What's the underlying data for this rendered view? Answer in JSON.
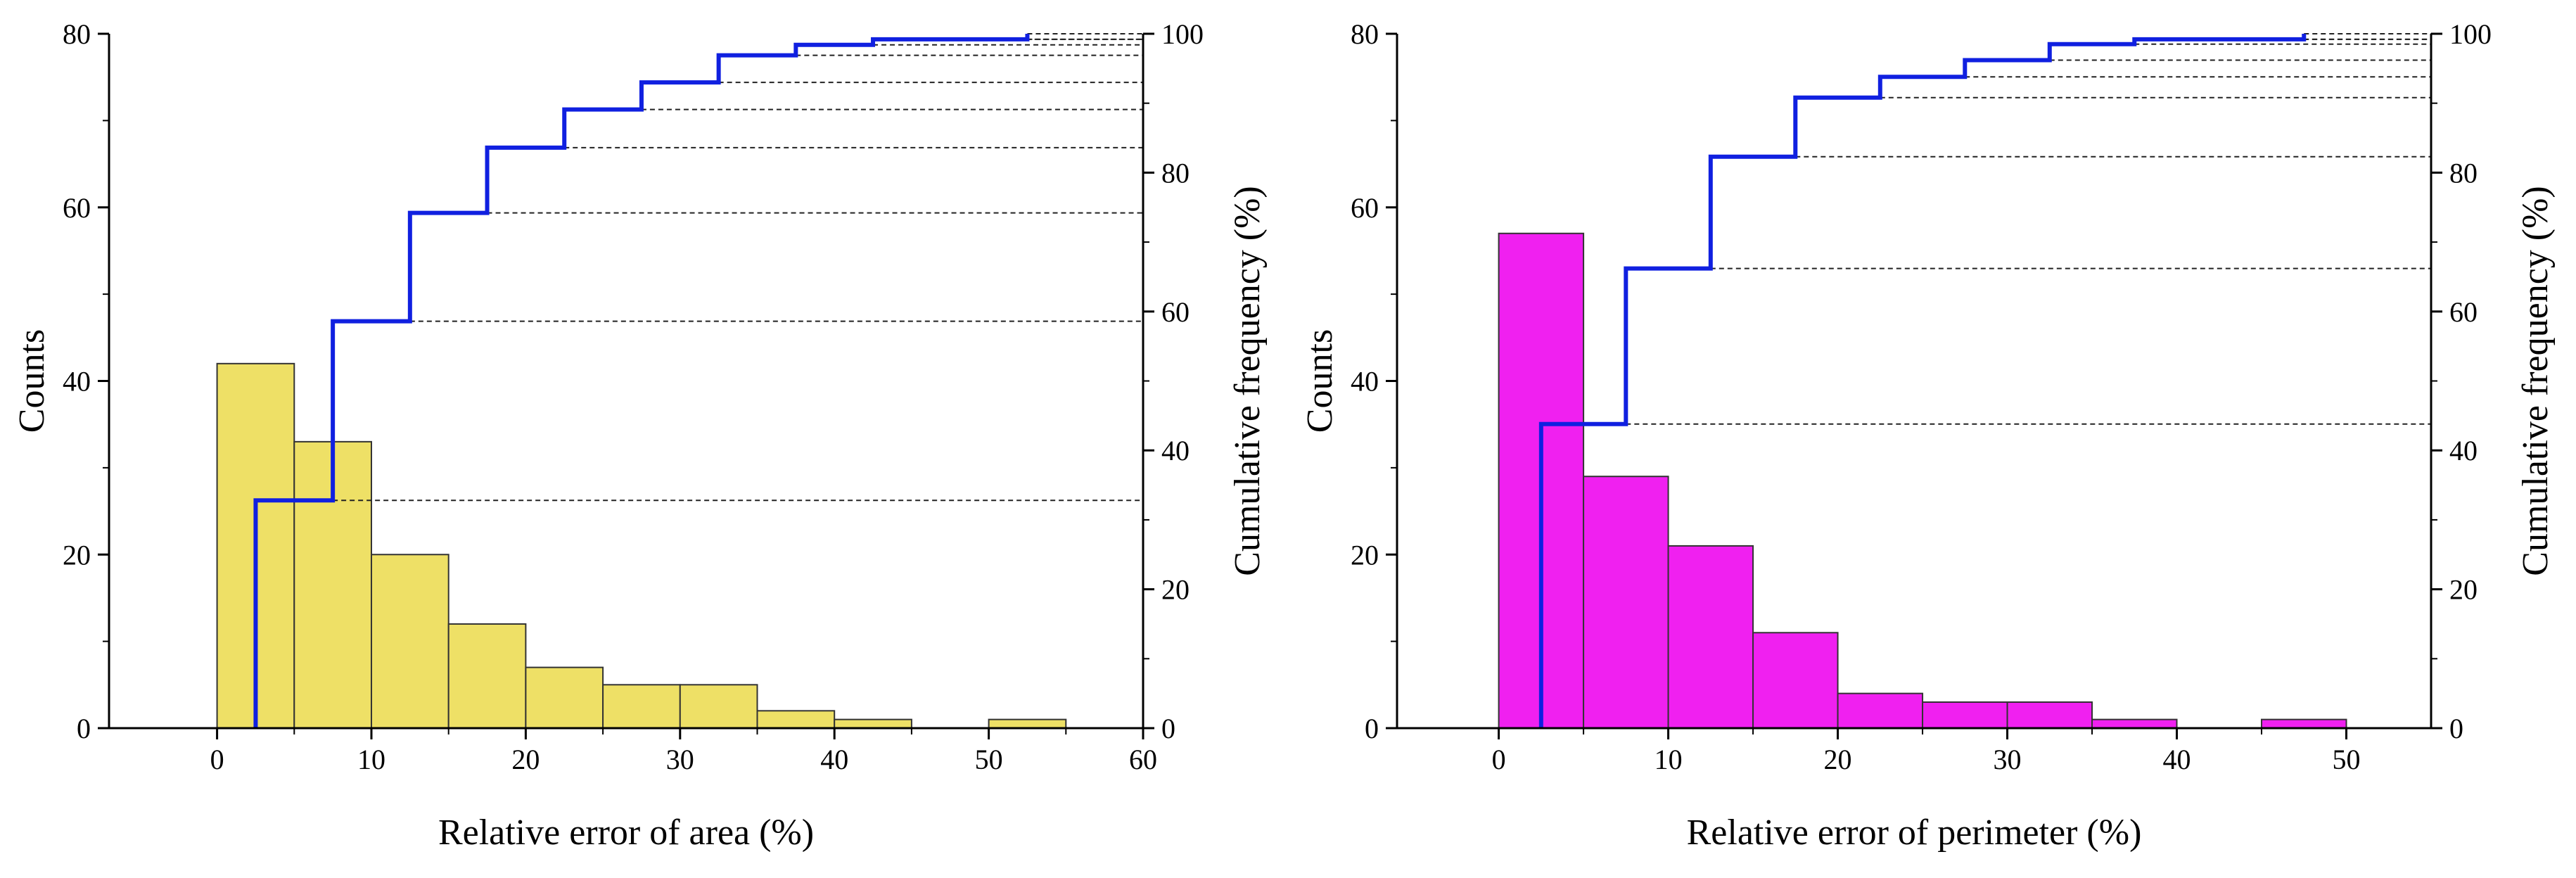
{
  "chart_data": [
    {
      "type": "bar",
      "id": "left",
      "xlabel": "Relative error of area (%)",
      "ylabel": "Counts",
      "ylabel_right": "Cumulative frequency (%)",
      "xlim": [
        -7,
        60
      ],
      "ylim": [
        0,
        80
      ],
      "ylim_right": [
        0,
        100
      ],
      "xticks": [
        0,
        10,
        20,
        30,
        40,
        50,
        60
      ],
      "yticks": [
        0,
        20,
        40,
        60,
        80
      ],
      "yticks_right": [
        0,
        20,
        40,
        60,
        80,
        100
      ],
      "bar_color": "#EEE066",
      "bin_width": 5,
      "bins": [
        0,
        5,
        10,
        15,
        20,
        25,
        30,
        35,
        40,
        45,
        50
      ],
      "counts": [
        42,
        33,
        20,
        12,
        7,
        5,
        5,
        2,
        1,
        0,
        1
      ],
      "cumulative_x": [
        2.5,
        7.5,
        12.5,
        17.5,
        22.5,
        27.5,
        32.5,
        37.5,
        42.5,
        47.5,
        52.5
      ],
      "cumulative_percent": [
        32.8,
        58.6,
        74.2,
        83.6,
        89.1,
        93.0,
        96.9,
        98.4,
        99.2,
        99.2,
        100
      ],
      "cumulative_color": "#1020E0"
    },
    {
      "type": "bar",
      "id": "right",
      "xlabel": "Relative error of perimeter (%)",
      "ylabel": "Counts",
      "ylabel_right": "Cumulative frequency (%)",
      "xlim": [
        -6,
        55
      ],
      "ylim": [
        0,
        80
      ],
      "ylim_right": [
        0,
        100
      ],
      "xticks": [
        0,
        10,
        20,
        30,
        40,
        50
      ],
      "yticks": [
        0,
        20,
        40,
        60,
        80
      ],
      "yticks_right": [
        0,
        20,
        40,
        60,
        80,
        100
      ],
      "bar_color": "#F020F0",
      "bin_width": 5,
      "bins": [
        0,
        5,
        10,
        15,
        20,
        25,
        30,
        35,
        40,
        45
      ],
      "counts": [
        57,
        29,
        21,
        11,
        4,
        3,
        3,
        1,
        0,
        1
      ],
      "cumulative_x": [
        2.5,
        7.5,
        12.5,
        17.5,
        22.5,
        27.5,
        32.5,
        37.5,
        42.5,
        47.5
      ],
      "cumulative_percent": [
        43.8,
        66.2,
        82.3,
        90.8,
        93.8,
        96.2,
        98.5,
        99.2,
        99.2,
        100
      ],
      "cumulative_color": "#1020E0"
    }
  ]
}
